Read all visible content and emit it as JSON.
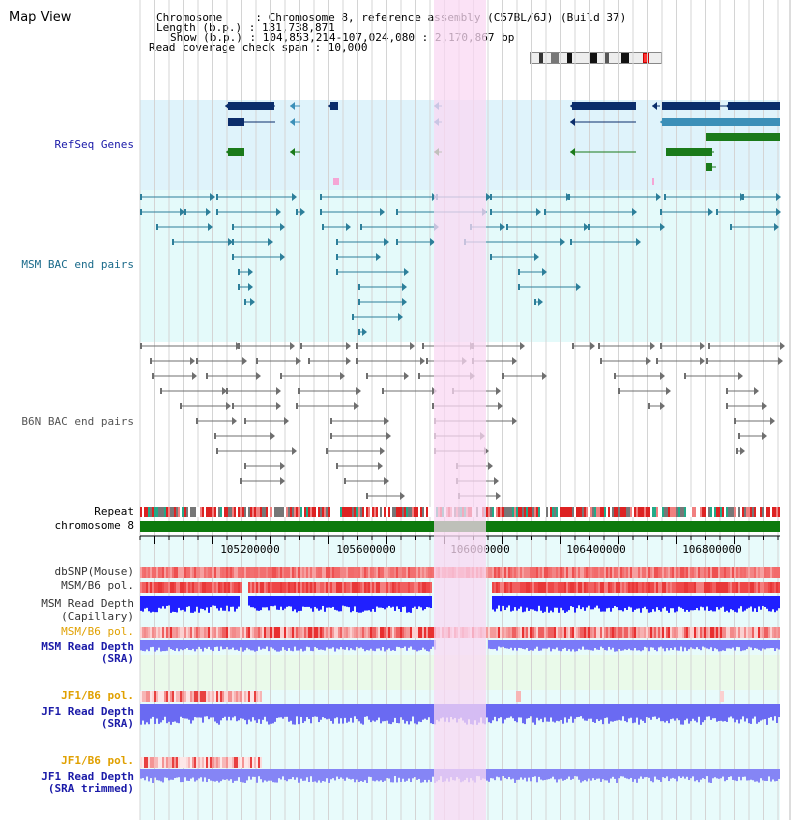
{
  "title": "Map View",
  "info": {
    "chromosome": "Chromosome     : Chromosome 8, reference assembly (C57BL/6J) (Build 37)",
    "length": "Length (b.p.) : 131,738,871",
    "show": "Show (b.p.) : 104,853,214-107,024,080 : 2,170,867 bp",
    "coverage": "Read coverage check span : 10,000"
  },
  "tracks": {
    "refseq": "RefSeq Genes",
    "msm_bac": "MSM BAC end pairs",
    "b6n_bac": "B6N BAC end pairs",
    "repeat": "Repeat",
    "chrom": "chromosome 8",
    "dbsnp": "dbSNP(Mouse)",
    "msm_pol": "MSM/B6 pol.",
    "msm_depth_cap_1": "MSM Read Depth",
    "msm_depth_cap_2": "(Capillary)",
    "msm_pol_sra": "MSM/B6 pol.",
    "msm_depth_sra_1": "MSM Read Depth",
    "msm_depth_sra_2": "(SRA)",
    "jf1_pol_1": "JF1/B6 pol.",
    "jf1_depth_1": "JF1 Read Depth",
    "jf1_depth_1b": "(SRA)",
    "jf1_pol_2": "JF1/B6 pol.",
    "jf1_depth_2": "JF1 Read Depth",
    "jf1_depth_2b": "(SRA trimmed)"
  },
  "axis": {
    "ticks": [
      "105200000",
      "105600000",
      "106000000",
      "106400000",
      "106800000"
    ]
  },
  "colors": {
    "refseq_bg": "#dff3fb",
    "msm_bg": "#e4fafa",
    "highlight": "#f9d8f3",
    "gene_navy": "#0b2d6b",
    "gene_teal": "#3b8fb8",
    "gene_green": "#1a7a1a",
    "msm_line": "#2d7f9a",
    "b6n_line": "#6f6f6f",
    "label_blue": "#1a1aa8",
    "label_orange": "#e0a000",
    "depth_blue": "#2020ff",
    "chrom_green": "#0d7a0d"
  }
}
